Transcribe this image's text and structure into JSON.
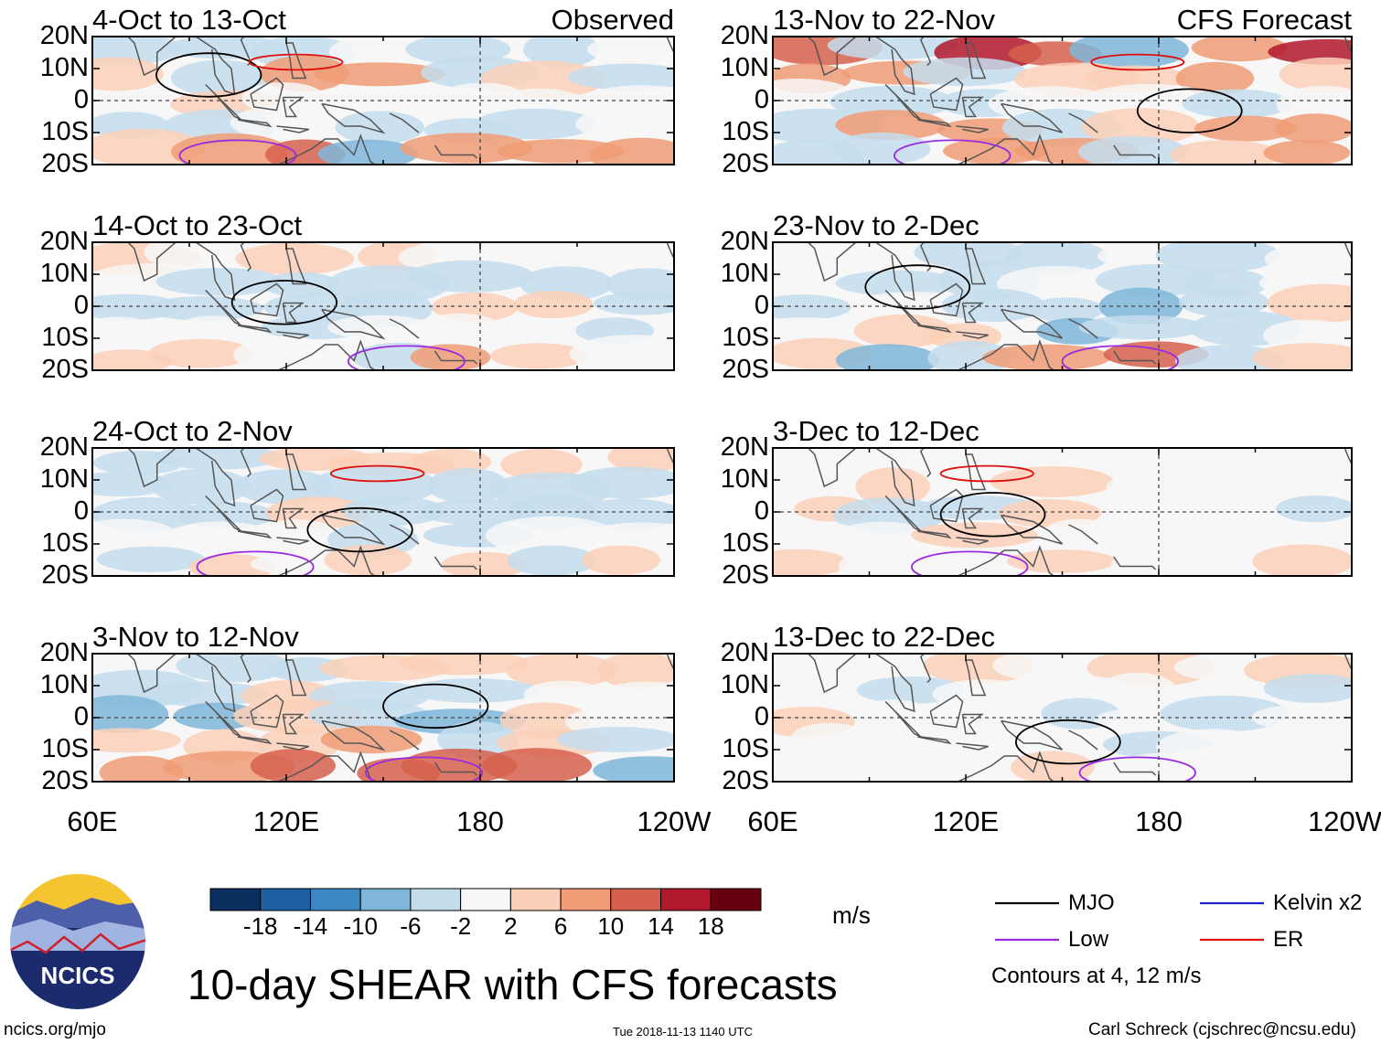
{
  "chart_data": {
    "type": "heatmap",
    "title": "10-day SHEAR with CFS forecasts",
    "variable_units": "m/s",
    "x_ticks": [
      "60E",
      "120E",
      "180",
      "120W"
    ],
    "y_ticks": [
      "20N",
      "10N",
      "0",
      "10S",
      "20S"
    ],
    "x_range_deg_east": [
      60,
      240
    ],
    "y_range_deg": [
      -20,
      20
    ],
    "colorbar": {
      "levels": [
        "-18",
        "-14",
        "-10",
        "-6",
        "-2",
        "2",
        "6",
        "10",
        "14",
        "18"
      ],
      "colors": [
        "#0a2f5e",
        "#1d5fa3",
        "#3b87c2",
        "#7fb6d9",
        "#c4dded",
        "#f7f7f7",
        "#fbd0b8",
        "#f09c76",
        "#d6604d",
        "#b2182b",
        "#670010"
      ],
      "units_label": "m/s"
    },
    "legend": [
      {
        "name": "MJO",
        "color": "#000000"
      },
      {
        "name": "Kelvin x2",
        "color": "#1f1fd0"
      },
      {
        "name": "Low",
        "color": "#9a2be0"
      },
      {
        "name": "ER",
        "color": "#e01010"
      }
    ],
    "contour_note": "Contours at 4, 12 m/s",
    "panels": [
      {
        "label": "4-Oct to 13-Oct",
        "tag": "Observed",
        "column": "observed",
        "row": 0,
        "mean_shear": [
          -4,
          6,
          2,
          -4,
          10
        ]
      },
      {
        "label": "14-Oct to 23-Oct",
        "tag": "",
        "column": "observed",
        "row": 1,
        "mean_shear": [
          2,
          -4,
          -6,
          -4,
          6
        ]
      },
      {
        "label": "24-Oct to 2-Nov",
        "tag": "",
        "column": "observed",
        "row": 2,
        "mean_shear": [
          8,
          -4,
          -6,
          -2,
          6
        ]
      },
      {
        "label": "3-Nov to 12-Nov",
        "tag": "",
        "column": "observed",
        "row": 3,
        "mean_shear": [
          6,
          -4,
          -6,
          6,
          12
        ]
      },
      {
        "label": "13-Nov to 22-Nov",
        "tag": "CFS Forecast",
        "column": "forecast",
        "row": 0,
        "mean_shear": [
          14,
          6,
          -2,
          6,
          8
        ]
      },
      {
        "label": "23-Nov to 2-Dec",
        "tag": "",
        "column": "forecast",
        "row": 1,
        "mean_shear": [
          -2,
          -2,
          -6,
          -8,
          10
        ]
      },
      {
        "label": "3-Dec to 12-Dec",
        "tag": "",
        "column": "forecast",
        "row": 2,
        "mean_shear": [
          2,
          2,
          -4,
          2,
          2
        ]
      },
      {
        "label": "13-Dec to 22-Dec",
        "tag": "",
        "column": "forecast",
        "row": 3,
        "mean_shear": [
          2,
          -2,
          -4,
          -2,
          2
        ]
      }
    ]
  },
  "logo": {
    "text": "NCICS"
  },
  "footer": {
    "url": "ncics.org/mjo",
    "timestamp": "Tue 2018-11-13 1140 UTC",
    "author": "Carl Schreck (cjschrec@ncsu.edu)"
  }
}
